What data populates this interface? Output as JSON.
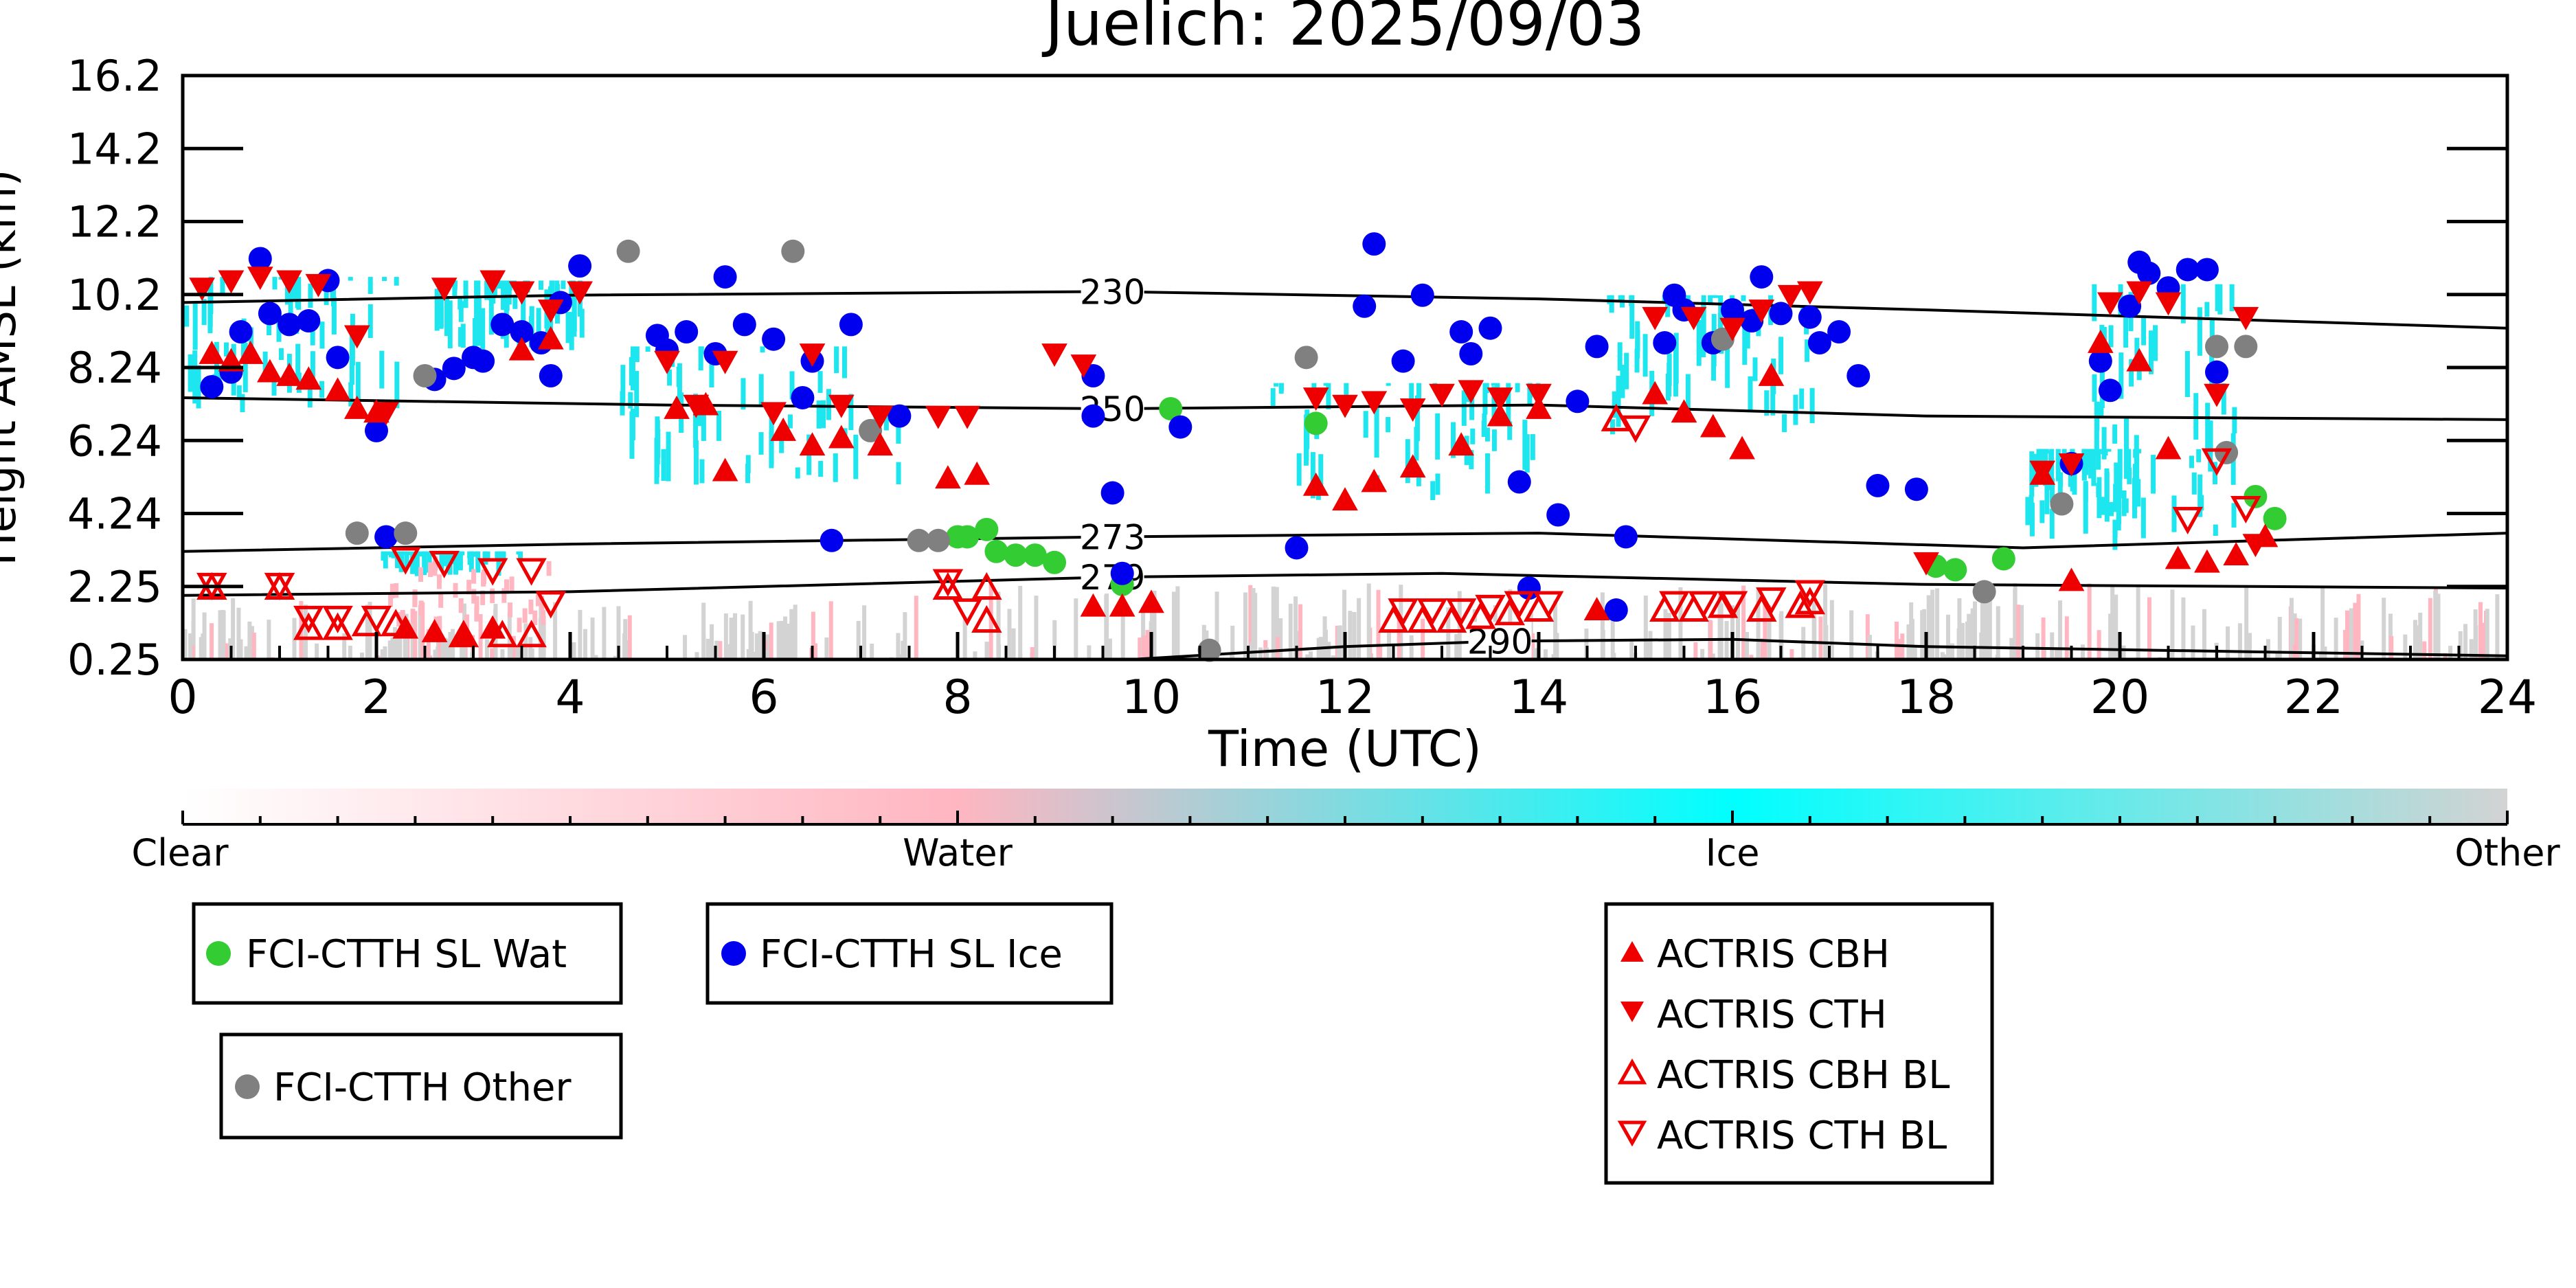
{
  "chart_data": {
    "type": "scatter",
    "title": "Juelich: 2025/09/03",
    "xlabel": "Time (UTC)",
    "ylabel": "Height AMSL (km)",
    "xlim": [
      0,
      24
    ],
    "ylim": [
      0.25,
      16.2
    ],
    "grid": false,
    "x_ticks": [
      0,
      2,
      4,
      6,
      8,
      10,
      12,
      14,
      16,
      18,
      20,
      22,
      24
    ],
    "y_ticks": [
      "0.25",
      "2.25",
      "4.24",
      "6.24",
      "8.24",
      "10.2",
      "12.2",
      "14.2",
      "16.2"
    ],
    "colorbar": {
      "labels": [
        "Clear",
        "Water",
        "Ice",
        "Other"
      ],
      "colors": [
        "#ffffff",
        "#ffb6c1",
        "#00ffff",
        "#d3d3d3"
      ]
    },
    "temperature_isolines": [
      {
        "label": "230",
        "label_x": 9.6,
        "points": [
          [
            0,
            10.0
          ],
          [
            4,
            10.2
          ],
          [
            9.6,
            10.3
          ],
          [
            14,
            10.1
          ],
          [
            18,
            9.8
          ],
          [
            24,
            9.3
          ]
        ]
      },
      {
        "label": "250",
        "label_x": 9.6,
        "points": [
          [
            0,
            7.4
          ],
          [
            5,
            7.2
          ],
          [
            9.6,
            7.1
          ],
          [
            14,
            7.2
          ],
          [
            18,
            6.9
          ],
          [
            24,
            6.8
          ]
        ]
      },
      {
        "label": "273",
        "label_x": 9.6,
        "points": [
          [
            0,
            3.2
          ],
          [
            4,
            3.4
          ],
          [
            9.6,
            3.6
          ],
          [
            14,
            3.7
          ],
          [
            19,
            3.3
          ],
          [
            24,
            3.7
          ]
        ]
      },
      {
        "label": "279",
        "label_x": 9.6,
        "points": [
          [
            0,
            2.0
          ],
          [
            4,
            2.1
          ],
          [
            9.6,
            2.5
          ],
          [
            13,
            2.6
          ],
          [
            18,
            2.3
          ],
          [
            24,
            2.2
          ]
        ]
      },
      {
        "label": "290",
        "label_x": 13.6,
        "points": [
          [
            9.8,
            0.25
          ],
          [
            12,
            0.6
          ],
          [
            13.6,
            0.75
          ],
          [
            16,
            0.8
          ],
          [
            18,
            0.6
          ],
          [
            24,
            0.35
          ]
        ]
      }
    ],
    "series": [
      {
        "name": "FCI-CTTH SL Wat",
        "marker": "circle",
        "color": "#33cc33",
        "points": [
          [
            8.0,
            3.6
          ],
          [
            8.1,
            3.6
          ],
          [
            8.3,
            3.8
          ],
          [
            8.4,
            3.2
          ],
          [
            8.6,
            3.1
          ],
          [
            8.8,
            3.1
          ],
          [
            9.0,
            2.9
          ],
          [
            9.7,
            2.3
          ],
          [
            10.2,
            7.1
          ],
          [
            11.7,
            6.7
          ],
          [
            18.1,
            2.8
          ],
          [
            18.3,
            2.7
          ],
          [
            18.8,
            3.0
          ],
          [
            21.4,
            4.7
          ],
          [
            21.6,
            4.1
          ]
        ]
      },
      {
        "name": "FCI-CTTH SL Ice",
        "marker": "circle",
        "color": "#0000ee",
        "points": [
          [
            0.3,
            7.7
          ],
          [
            0.5,
            8.1
          ],
          [
            0.6,
            9.2
          ],
          [
            0.8,
            11.2
          ],
          [
            0.9,
            9.7
          ],
          [
            1.1,
            9.4
          ],
          [
            1.3,
            9.5
          ],
          [
            1.5,
            10.6
          ],
          [
            1.6,
            8.5
          ],
          [
            2.0,
            6.5
          ],
          [
            2.1,
            3.6
          ],
          [
            2.6,
            7.9
          ],
          [
            2.8,
            8.2
          ],
          [
            3.0,
            8.5
          ],
          [
            3.1,
            8.4
          ],
          [
            3.3,
            9.4
          ],
          [
            3.5,
            9.2
          ],
          [
            3.7,
            8.9
          ],
          [
            3.8,
            8.0
          ],
          [
            3.9,
            10.0
          ],
          [
            4.1,
            11.0
          ],
          [
            4.9,
            9.1
          ],
          [
            5.0,
            8.7
          ],
          [
            5.2,
            9.2
          ],
          [
            5.5,
            8.6
          ],
          [
            5.6,
            10.7
          ],
          [
            5.8,
            9.4
          ],
          [
            6.1,
            9.0
          ],
          [
            6.4,
            7.4
          ],
          [
            6.5,
            8.4
          ],
          [
            6.7,
            3.5
          ],
          [
            6.9,
            9.4
          ],
          [
            7.4,
            6.9
          ],
          [
            9.4,
            6.9
          ],
          [
            9.4,
            8.0
          ],
          [
            9.6,
            4.8
          ],
          [
            9.7,
            2.6
          ],
          [
            10.3,
            6.6
          ],
          [
            11.5,
            3.3
          ],
          [
            12.2,
            9.9
          ],
          [
            12.3,
            11.6
          ],
          [
            12.6,
            8.4
          ],
          [
            12.8,
            10.2
          ],
          [
            13.2,
            9.2
          ],
          [
            13.3,
            8.6
          ],
          [
            13.5,
            9.3
          ],
          [
            13.8,
            5.1
          ],
          [
            13.9,
            2.2
          ],
          [
            14.2,
            4.2
          ],
          [
            14.4,
            7.3
          ],
          [
            14.6,
            8.8
          ],
          [
            14.8,
            1.6
          ],
          [
            14.9,
            3.6
          ],
          [
            15.3,
            8.9
          ],
          [
            15.4,
            10.2
          ],
          [
            15.5,
            9.8
          ],
          [
            15.8,
            8.9
          ],
          [
            16.0,
            9.8
          ],
          [
            16.2,
            9.5
          ],
          [
            16.3,
            10.7
          ],
          [
            16.5,
            9.7
          ],
          [
            16.8,
            9.6
          ],
          [
            16.9,
            8.9
          ],
          [
            17.1,
            9.2
          ],
          [
            17.3,
            8.0
          ],
          [
            17.5,
            5.0
          ],
          [
            17.9,
            4.9
          ],
          [
            19.5,
            5.6
          ],
          [
            19.8,
            8.4
          ],
          [
            19.9,
            7.6
          ],
          [
            20.1,
            9.9
          ],
          [
            20.2,
            11.1
          ],
          [
            20.3,
            10.8
          ],
          [
            20.5,
            10.4
          ],
          [
            20.7,
            10.9
          ],
          [
            20.9,
            10.9
          ],
          [
            21.0,
            8.1
          ]
        ]
      },
      {
        "name": "FCI-CTTH Other",
        "marker": "circle",
        "color": "#808080",
        "points": [
          [
            1.8,
            3.7
          ],
          [
            2.3,
            3.7
          ],
          [
            2.5,
            8.0
          ],
          [
            4.6,
            11.4
          ],
          [
            6.3,
            11.4
          ],
          [
            7.1,
            6.5
          ],
          [
            7.6,
            3.5
          ],
          [
            7.8,
            3.5
          ],
          [
            10.6,
            0.5
          ],
          [
            11.6,
            8.5
          ],
          [
            15.9,
            9.0
          ],
          [
            18.6,
            2.1
          ],
          [
            19.4,
            4.5
          ],
          [
            21.0,
            8.8
          ],
          [
            21.1,
            5.9
          ],
          [
            21.3,
            8.8
          ]
        ]
      },
      {
        "name": "ACTRIS CBH",
        "marker": "triangle-up",
        "color": "#ee0000",
        "filled": true,
        "points": [
          [
            0.3,
            8.6
          ],
          [
            0.5,
            8.4
          ],
          [
            0.7,
            8.6
          ],
          [
            0.9,
            8.1
          ],
          [
            1.1,
            8.0
          ],
          [
            1.3,
            7.9
          ],
          [
            1.6,
            7.6
          ],
          [
            1.8,
            7.1
          ],
          [
            2.0,
            7.0
          ],
          [
            2.3,
            1.1
          ],
          [
            2.6,
            1.0
          ],
          [
            2.9,
            0.9
          ],
          [
            3.2,
            1.1
          ],
          [
            3.5,
            8.7
          ],
          [
            3.8,
            9.0
          ],
          [
            5.1,
            7.1
          ],
          [
            5.4,
            7.2
          ],
          [
            5.6,
            5.4
          ],
          [
            6.2,
            6.5
          ],
          [
            6.5,
            6.1
          ],
          [
            6.8,
            6.3
          ],
          [
            7.2,
            6.1
          ],
          [
            7.9,
            5.2
          ],
          [
            8.2,
            5.3
          ],
          [
            9.4,
            1.7
          ],
          [
            9.7,
            1.7
          ],
          [
            10.0,
            1.8
          ],
          [
            11.7,
            5.0
          ],
          [
            12.0,
            4.6
          ],
          [
            12.3,
            5.1
          ],
          [
            12.7,
            5.5
          ],
          [
            13.2,
            6.1
          ],
          [
            13.6,
            6.9
          ],
          [
            14.0,
            7.1
          ],
          [
            14.6,
            1.6
          ],
          [
            15.2,
            7.5
          ],
          [
            15.5,
            7.0
          ],
          [
            15.8,
            6.6
          ],
          [
            16.1,
            6.0
          ],
          [
            16.4,
            8.0
          ],
          [
            19.2,
            5.3
          ],
          [
            19.5,
            2.4
          ],
          [
            19.8,
            8.9
          ],
          [
            20.2,
            8.4
          ],
          [
            20.5,
            6.0
          ],
          [
            20.6,
            3.0
          ],
          [
            20.9,
            2.9
          ],
          [
            21.2,
            3.1
          ],
          [
            21.5,
            3.6
          ]
        ]
      },
      {
        "name": "ACTRIS CTH",
        "marker": "triangle-down",
        "color": "#ee0000",
        "filled": true,
        "points": [
          [
            0.2,
            10.4
          ],
          [
            0.5,
            10.6
          ],
          [
            0.8,
            10.7
          ],
          [
            1.1,
            10.6
          ],
          [
            1.4,
            10.5
          ],
          [
            1.8,
            9.1
          ],
          [
            2.1,
            7.0
          ],
          [
            2.7,
            10.4
          ],
          [
            3.2,
            10.6
          ],
          [
            3.5,
            10.3
          ],
          [
            3.8,
            9.8
          ],
          [
            4.1,
            10.3
          ],
          [
            5.0,
            8.4
          ],
          [
            5.3,
            7.2
          ],
          [
            5.6,
            8.4
          ],
          [
            6.1,
            7.0
          ],
          [
            6.5,
            8.6
          ],
          [
            6.8,
            7.2
          ],
          [
            7.2,
            6.9
          ],
          [
            7.8,
            6.9
          ],
          [
            8.1,
            6.9
          ],
          [
            9.0,
            8.6
          ],
          [
            9.3,
            8.3
          ],
          [
            11.7,
            7.4
          ],
          [
            12.0,
            7.2
          ],
          [
            12.3,
            7.3
          ],
          [
            12.7,
            7.1
          ],
          [
            13.0,
            7.5
          ],
          [
            13.3,
            7.6
          ],
          [
            13.6,
            7.4
          ],
          [
            14.0,
            7.5
          ],
          [
            15.2,
            9.6
          ],
          [
            15.6,
            9.6
          ],
          [
            16.0,
            9.3
          ],
          [
            16.3,
            9.8
          ],
          [
            16.6,
            10.2
          ],
          [
            16.8,
            10.3
          ],
          [
            18.0,
            2.9
          ],
          [
            19.2,
            5.4
          ],
          [
            19.5,
            5.6
          ],
          [
            19.9,
            10.0
          ],
          [
            20.2,
            10.3
          ],
          [
            20.5,
            10.0
          ],
          [
            21.0,
            7.5
          ],
          [
            21.3,
            9.6
          ],
          [
            21.4,
            3.4
          ]
        ]
      },
      {
        "name": "ACTRIS CBH BL",
        "marker": "triangle-up",
        "color": "#ee0000",
        "filled": false,
        "points": [
          [
            0.3,
            2.2
          ],
          [
            1.0,
            2.2
          ],
          [
            1.3,
            1.1
          ],
          [
            1.6,
            1.1
          ],
          [
            1.9,
            1.2
          ],
          [
            2.2,
            1.2
          ],
          [
            2.9,
            0.9
          ],
          [
            3.3,
            0.9
          ],
          [
            3.6,
            0.9
          ],
          [
            7.9,
            2.2
          ],
          [
            8.3,
            2.2
          ],
          [
            8.3,
            1.3
          ],
          [
            12.5,
            1.3
          ],
          [
            12.8,
            1.3
          ],
          [
            13.1,
            1.3
          ],
          [
            13.4,
            1.4
          ],
          [
            13.7,
            1.5
          ],
          [
            14.0,
            1.6
          ],
          [
            15.3,
            1.6
          ],
          [
            15.6,
            1.6
          ],
          [
            15.9,
            1.7
          ],
          [
            16.3,
            1.6
          ],
          [
            16.7,
            1.7
          ],
          [
            16.8,
            1.8
          ],
          [
            14.8,
            6.8
          ]
        ]
      },
      {
        "name": "ACTRIS CTH BL",
        "marker": "triangle-down",
        "color": "#ee0000",
        "filled": false,
        "points": [
          [
            0.3,
            2.3
          ],
          [
            1.0,
            2.3
          ],
          [
            1.3,
            1.4
          ],
          [
            1.6,
            1.4
          ],
          [
            2.0,
            1.4
          ],
          [
            2.3,
            3.0
          ],
          [
            2.7,
            2.9
          ],
          [
            3.2,
            2.7
          ],
          [
            3.6,
            2.7
          ],
          [
            3.8,
            1.8
          ],
          [
            7.9,
            2.4
          ],
          [
            8.1,
            1.6
          ],
          [
            12.6,
            1.6
          ],
          [
            12.9,
            1.6
          ],
          [
            13.2,
            1.6
          ],
          [
            13.5,
            1.7
          ],
          [
            13.8,
            1.8
          ],
          [
            14.1,
            1.8
          ],
          [
            15.0,
            6.6
          ],
          [
            15.4,
            1.8
          ],
          [
            15.7,
            1.8
          ],
          [
            16.0,
            1.8
          ],
          [
            16.4,
            1.9
          ],
          [
            16.8,
            2.1
          ],
          [
            20.7,
            4.1
          ],
          [
            21.3,
            4.4
          ],
          [
            21.0,
            5.7
          ]
        ]
      }
    ]
  },
  "legends": {
    "group1": [
      "FCI-CTTH SL Wat",
      "FCI-CTTH Other"
    ],
    "group2": [
      "FCI-CTTH SL Ice"
    ],
    "group3": [
      "ACTRIS CBH",
      "ACTRIS CTH",
      "ACTRIS CBH BL",
      "ACTRIS CTH BL"
    ]
  }
}
